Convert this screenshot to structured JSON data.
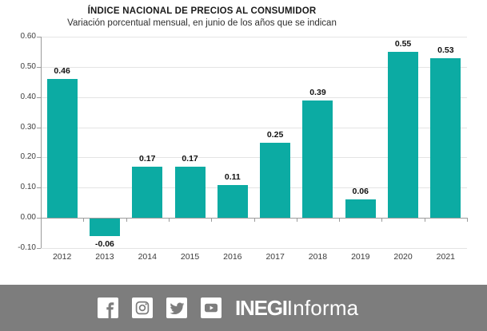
{
  "chart_data": {
    "type": "bar",
    "title": "ÍNDICE NACIONAL DE PRECIOS AL CONSUMIDOR",
    "subtitle": "Variación porcentual mensual, en junio de los años que se indican",
    "categories": [
      "2012",
      "2013",
      "2014",
      "2015",
      "2016",
      "2017",
      "2018",
      "2019",
      "2020",
      "2021"
    ],
    "values": [
      0.46,
      -0.06,
      0.17,
      0.17,
      0.11,
      0.25,
      0.39,
      0.06,
      0.55,
      0.53
    ],
    "value_labels": [
      "0.46",
      "-0.06",
      "0.17",
      "0.17",
      "0.11",
      "0.25",
      "0.39",
      "0.06",
      "0.55",
      "0.53"
    ],
    "xlabel": "",
    "ylabel": "",
    "ylim": [
      -0.1,
      0.6
    ],
    "yticks": [
      {
        "value": 0.6,
        "label": "0.60"
      },
      {
        "value": 0.5,
        "label": "0.50"
      },
      {
        "value": 0.4,
        "label": "0.40"
      },
      {
        "value": 0.3,
        "label": "0.30"
      },
      {
        "value": 0.2,
        "label": "0.20"
      },
      {
        "value": 0.1,
        "label": "0.10"
      },
      {
        "value": 0.0,
        "label": "0.00"
      },
      {
        "value": -0.1,
        "label": "-0.10"
      }
    ],
    "grid": true,
    "legend": "none",
    "bar_color": "#0CABA3"
  },
  "footer": {
    "icons": [
      "facebook",
      "instagram",
      "twitter",
      "youtube"
    ],
    "logo_bold": "INEGI",
    "logo_regular": "Informa",
    "background": "#7D7D7D"
  }
}
